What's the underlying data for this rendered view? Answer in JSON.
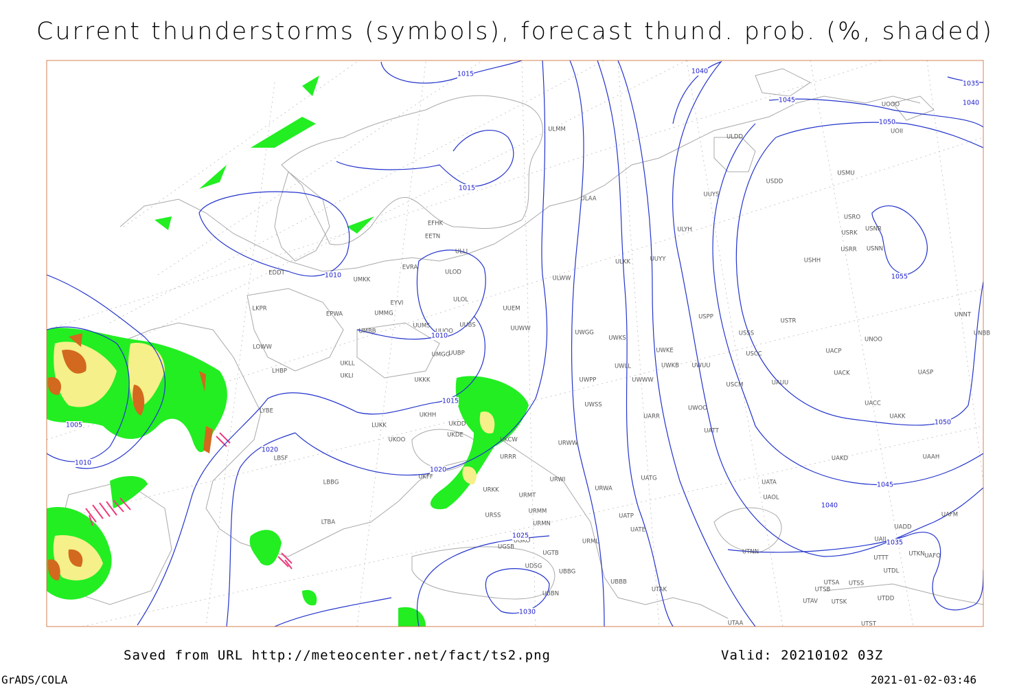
{
  "title": "Current thunderstorms (symbols), forecast thund. prob. (%, shaded)",
  "isobar_labels": [
    1015,
    1015,
    1010,
    1010,
    1005,
    1010,
    1015,
    1020,
    1020,
    1025,
    1030,
    1040,
    1045,
    1035,
    1040,
    1050,
    1055,
    1050,
    1045,
    1040,
    1035
  ],
  "stations": [
    "ULMM",
    "ULAA",
    "ULDD",
    "USDD",
    "USMU",
    "UUYS",
    "UOOO",
    "UOII",
    "USRO",
    "USRK",
    "USNR",
    "USRR",
    "USNN",
    "USHH",
    "ULYH",
    "UUYY",
    "ULKK",
    "ULWW",
    "UUEM",
    "UUWW",
    "UWGG",
    "UWKS",
    "UWKE",
    "UWUU",
    "UWLL",
    "UWKB",
    "UWWW",
    "UWPP",
    "UWSS",
    "USPP",
    "USTR",
    "USSS",
    "USCC",
    "USCM",
    "UAUU",
    "UWOO",
    "UATT",
    "UARR",
    "UAKD",
    "UATA",
    "UAOL",
    "UADD",
    "UAFM",
    "UAII",
    "UTTT",
    "UTDL",
    "UTKN",
    "UAFO",
    "UTSA",
    "UTSS",
    "UTSB",
    "UTAV",
    "UTSK",
    "UTDD",
    "UTST",
    "UTAA",
    "UTNN",
    "UATG",
    "URWA",
    "UATE",
    "UATP",
    "URML",
    "UBBB",
    "UTAK",
    "UBBG",
    "UBBN",
    "UGTB",
    "UDSG",
    "UGSB",
    "UGKO",
    "URSS",
    "URMM",
    "URMN",
    "URMT",
    "URKK",
    "URWI",
    "URRR",
    "URWW",
    "UKCW",
    "UKFF",
    "UKOO",
    "LUKK",
    "UKDD",
    "UKDE",
    "UKHH",
    "UKKK",
    "UUBP",
    "UMGG",
    "UUOO",
    "UUMS",
    "UUBS",
    "ULOL",
    "ULOD",
    "EVRA",
    "EETN",
    "EFHK",
    "ULLI",
    "UMKK",
    "EYVI",
    "UMMG",
    "UMBB",
    "EPWA",
    "UKLL",
    "UKLI",
    "LKPR",
    "EDDT",
    "LOWW",
    "LHBP",
    "LYBE",
    "LBSF",
    "LBBG",
    "LTBA",
    "UNNT",
    "UNBB",
    "UNOO",
    "UACP",
    "UACK",
    "UASP",
    "UACC",
    "UAKK",
    "UAAH"
  ],
  "footer": {
    "source": "Saved from URL http://meteocenter.net/fact/ts2.png",
    "valid": "Valid: 20210102 03Z",
    "software": "GrADS/COLA",
    "timestamp": "2021-01-02-03:46"
  }
}
